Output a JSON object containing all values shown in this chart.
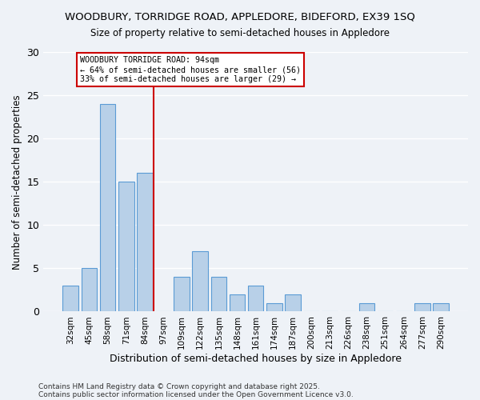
{
  "title1": "WOODBURY, TORRIDGE ROAD, APPLEDORE, BIDEFORD, EX39 1SQ",
  "title2": "Size of property relative to semi-detached houses in Appledore",
  "xlabel": "Distribution of semi-detached houses by size in Appledore",
  "ylabel_full": "Number of semi-detached properties",
  "categories": [
    "32sqm",
    "45sqm",
    "58sqm",
    "71sqm",
    "84sqm",
    "97sqm",
    "109sqm",
    "122sqm",
    "135sqm",
    "148sqm",
    "161sqm",
    "174sqm",
    "187sqm",
    "200sqm",
    "213sqm",
    "226sqm",
    "238sqm",
    "251sqm",
    "264sqm",
    "277sqm",
    "290sqm"
  ],
  "values": [
    3,
    5,
    24,
    15,
    16,
    0,
    4,
    7,
    4,
    2,
    3,
    1,
    2,
    0,
    0,
    0,
    1,
    0,
    0,
    1,
    1
  ],
  "bar_color": "#b8d0e8",
  "bar_edge_color": "#5b9bd5",
  "annotation_label": "WOODBURY TORRIDGE ROAD: 94sqm",
  "annotation_smaller": "← 64% of semi-detached houses are smaller (56)",
  "annotation_larger": "33% of semi-detached houses are larger (29) →",
  "annotation_box_color": "#ffffff",
  "annotation_box_edge": "#cc0000",
  "redline_color": "#cc0000",
  "ylim": [
    0,
    30
  ],
  "yticks": [
    0,
    5,
    10,
    15,
    20,
    25,
    30
  ],
  "footnote1": "Contains HM Land Registry data © Crown copyright and database right 2025.",
  "footnote2": "Contains public sector information licensed under the Open Government Licence v3.0.",
  "background_color": "#eef2f7",
  "grid_color": "#ffffff"
}
